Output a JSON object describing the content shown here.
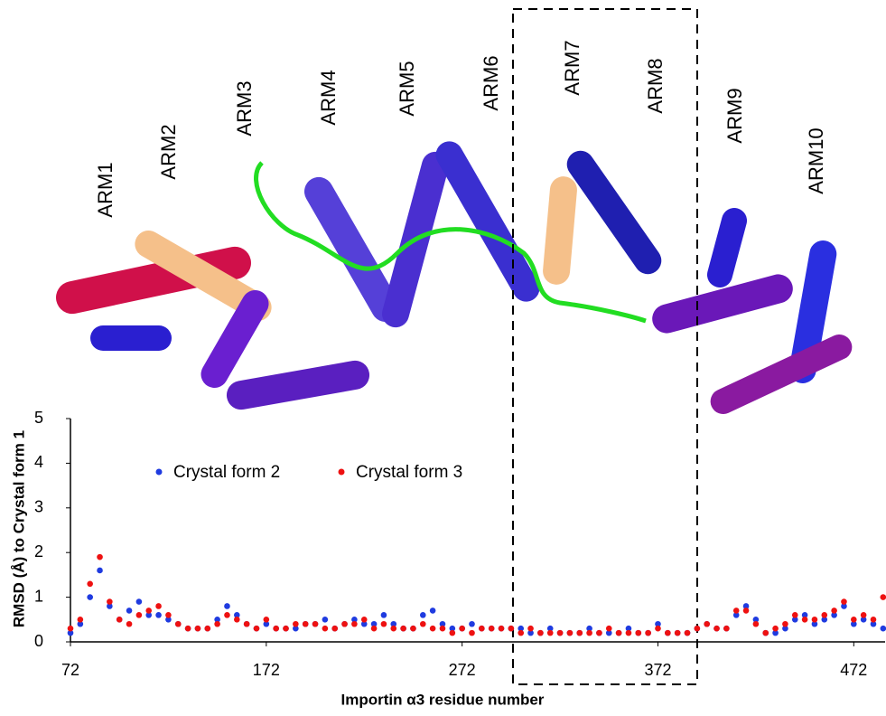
{
  "arm_labels": [
    "ARM1",
    "ARM2",
    "ARM3",
    "ARM4",
    "ARM5",
    "ARM6",
    "ARM7",
    "ARM8",
    "ARM9",
    "ARM10"
  ],
  "chart_data": {
    "type": "scatter",
    "xlabel": "Importin α3  residue number",
    "ylabel": "RMSD (Å) to Crystal form 1",
    "xlim": [
      72,
      488
    ],
    "ylim": [
      0,
      5
    ],
    "xticks": [
      72,
      172,
      272,
      372,
      472
    ],
    "yticks": [
      0,
      1,
      2,
      3,
      4,
      5
    ],
    "x": [
      72,
      77,
      82,
      87,
      92,
      97,
      102,
      107,
      112,
      117,
      122,
      127,
      132,
      137,
      142,
      147,
      152,
      157,
      162,
      167,
      172,
      177,
      182,
      187,
      192,
      197,
      202,
      207,
      212,
      217,
      222,
      227,
      232,
      237,
      242,
      247,
      252,
      257,
      262,
      267,
      272,
      277,
      282,
      287,
      292,
      297,
      302,
      307,
      312,
      317,
      322,
      327,
      332,
      337,
      342,
      347,
      352,
      357,
      362,
      367,
      372,
      377,
      382,
      387,
      392,
      397,
      402,
      407,
      412,
      417,
      422,
      427,
      432,
      437,
      442,
      447,
      452,
      457,
      462,
      467,
      472,
      477,
      482,
      487
    ],
    "series": [
      {
        "name": "Crystal form 2",
        "color": "#1f3be0",
        "values": [
          0.2,
          0.4,
          1.0,
          1.6,
          0.8,
          0.5,
          0.7,
          0.9,
          0.6,
          0.6,
          0.5,
          0.4,
          0.3,
          0.3,
          0.3,
          0.5,
          0.8,
          0.6,
          0.4,
          0.3,
          0.4,
          0.3,
          0.3,
          0.3,
          0.4,
          0.4,
          0.5,
          0.3,
          0.4,
          0.5,
          0.4,
          0.4,
          0.6,
          0.4,
          0.3,
          0.3,
          0.6,
          0.7,
          0.4,
          0.3,
          0.3,
          0.4,
          0.3,
          0.3,
          0.3,
          0.3,
          0.3,
          0.2,
          0.2,
          0.3,
          0.2,
          0.2,
          0.2,
          0.3,
          0.2,
          0.2,
          0.2,
          0.3,
          0.2,
          0.2,
          0.4,
          0.2,
          0.2,
          0.2,
          0.3,
          0.4,
          0.3,
          0.3,
          0.6,
          0.8,
          0.5,
          0.2,
          0.2,
          0.3,
          0.5,
          0.6,
          0.4,
          0.5,
          0.6,
          0.8,
          0.4,
          0.5,
          0.4,
          0.3
        ]
      },
      {
        "name": "Crystal form 3",
        "color": "#ee1111",
        "values": [
          0.3,
          0.5,
          1.3,
          1.9,
          0.9,
          0.5,
          0.4,
          0.6,
          0.7,
          0.8,
          0.6,
          0.4,
          0.3,
          0.3,
          0.3,
          0.4,
          0.6,
          0.5,
          0.4,
          0.3,
          0.5,
          0.3,
          0.3,
          0.4,
          0.4,
          0.4,
          0.3,
          0.3,
          0.4,
          0.4,
          0.5,
          0.3,
          0.4,
          0.3,
          0.3,
          0.3,
          0.4,
          0.3,
          0.3,
          0.2,
          0.3,
          0.2,
          0.3,
          0.3,
          0.3,
          0.3,
          0.2,
          0.3,
          0.2,
          0.2,
          0.2,
          0.2,
          0.2,
          0.2,
          0.2,
          0.3,
          0.2,
          0.2,
          0.2,
          0.2,
          0.3,
          0.2,
          0.2,
          0.2,
          0.3,
          0.4,
          0.3,
          0.3,
          0.7,
          0.7,
          0.4,
          0.2,
          0.3,
          0.4,
          0.6,
          0.5,
          0.5,
          0.6,
          0.7,
          0.9,
          0.5,
          0.6,
          0.5,
          1.0
        ]
      }
    ]
  }
}
